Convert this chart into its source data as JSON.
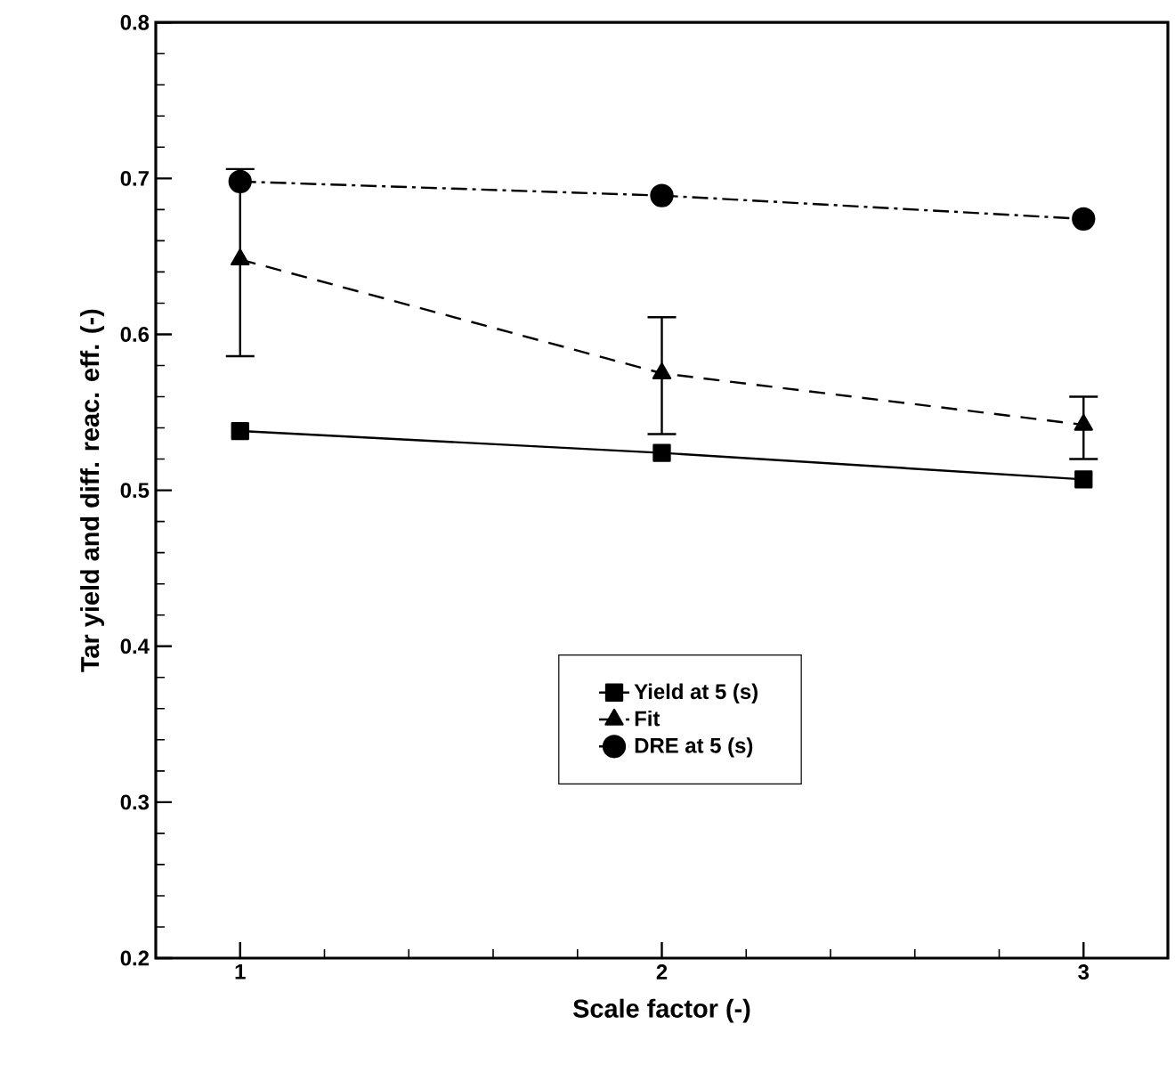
{
  "chart_data": {
    "type": "line",
    "xlabel": "Scale factor (-)",
    "ylabel": "Tar yield and diff. reac. eff. (-)",
    "x": [
      1,
      2,
      3
    ],
    "series": [
      {
        "name": "Yield at 5 (s)",
        "color": "#000000",
        "values": [
          0.538,
          0.524,
          0.507
        ],
        "marker": "square",
        "line_style": "solid"
      },
      {
        "name": "Fit",
        "color": "#000000",
        "values": [
          0.648,
          0.575,
          0.542
        ],
        "errors": [
          [
            0.586,
            0.706
          ],
          [
            0.536,
            0.611
          ],
          [
            0.52,
            0.56
          ]
        ],
        "marker": "triangle",
        "line_style": "dashed"
      },
      {
        "name": "DRE at 5 (s)",
        "color": "#000000",
        "values": [
          0.698,
          0.689,
          0.674
        ],
        "marker": "circle",
        "line_style": "dashdot"
      }
    ],
    "xlim": [
      0.8,
      3.2
    ],
    "xticks": [
      1,
      2,
      3
    ],
    "ylim": [
      0.2,
      0.8
    ],
    "yticks": [
      0.2,
      0.3,
      0.4,
      0.5,
      0.6,
      0.7,
      0.8
    ],
    "grid": false,
    "legend": "center"
  }
}
